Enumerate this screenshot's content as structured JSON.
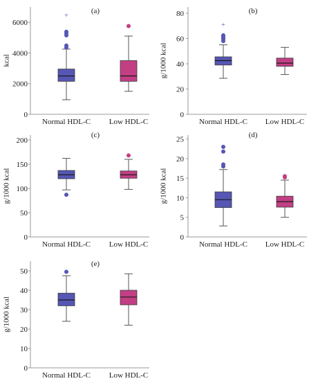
{
  "colors": {
    "normal": "#5656b4",
    "low": "#c23f84",
    "axis": "#9a9a9a",
    "whisker": "#555555",
    "median": "#1b1b1b"
  },
  "chart_data": [
    {
      "panel": "(a)",
      "type": "boxplot",
      "ylabel": "kcal",
      "ylim": [
        0,
        7000
      ],
      "yticks": [
        0,
        2000,
        4000,
        6000
      ],
      "categories": [
        "Normal HDL-C",
        "Low HDL-C"
      ],
      "series": [
        {
          "q1": 2150,
          "median": 2500,
          "q3": 2950,
          "whisker_low": 950,
          "whisker_high": 4250,
          "outliers": [
            4350,
            4480,
            5150,
            5280,
            5380
          ],
          "extremes": [
            6450
          ]
        },
        {
          "q1": 2150,
          "median": 2500,
          "q3": 3500,
          "whisker_low": 1500,
          "whisker_high": 5100,
          "outliers": [
            5750
          ],
          "extremes": []
        }
      ]
    },
    {
      "panel": "(b)",
      "type": "boxplot",
      "ylabel": "g/1000 kcal",
      "ylim": [
        0,
        85
      ],
      "yticks": [
        0,
        20,
        40,
        60,
        80
      ],
      "categories": [
        "Normal HDL-C",
        "Low HDL-C"
      ],
      "series": [
        {
          "q1": 39,
          "median": 42.5,
          "q3": 45.5,
          "whisker_low": 28.5,
          "whisker_high": 55,
          "outliers": [
            58,
            59.5,
            60.5,
            61.5,
            62.5
          ],
          "extremes": [
            71
          ]
        },
        {
          "q1": 38,
          "median": 40.5,
          "q3": 44.5,
          "whisker_low": 31.5,
          "whisker_high": 53,
          "outliers": [],
          "extremes": []
        }
      ]
    },
    {
      "panel": "(c)",
      "type": "boxplot",
      "ylabel": "g/1000 kcal",
      "ylim": [
        0,
        210
      ],
      "yticks": [
        0,
        50,
        100,
        150,
        200
      ],
      "categories": [
        "Normal HDL-C",
        "Low HDL-C"
      ],
      "series": [
        {
          "q1": 120,
          "median": 128,
          "q3": 137,
          "whisker_low": 97,
          "whisker_high": 162,
          "outliers": [
            87
          ],
          "extremes": []
        },
        {
          "q1": 121,
          "median": 128,
          "q3": 136,
          "whisker_low": 98,
          "whisker_high": 160,
          "outliers": [
            168
          ],
          "extremes": []
        }
      ]
    },
    {
      "panel": "(d)",
      "type": "boxplot",
      "ylabel": "g/1000 kcal",
      "ylim": [
        0,
        26
      ],
      "yticks": [
        0,
        5,
        10,
        15,
        20,
        25
      ],
      "categories": [
        "Normal HDL-C",
        "Low HDL-C"
      ],
      "series": [
        {
          "q1": 7.5,
          "median": 9.5,
          "q3": 11.5,
          "whisker_low": 2.8,
          "whisker_high": 17.2,
          "outliers": [
            18,
            18.5,
            21.8,
            23
          ],
          "extremes": []
        },
        {
          "q1": 7.6,
          "median": 9.0,
          "q3": 10.4,
          "whisker_low": 5.0,
          "whisker_high": 14.5,
          "outliers": [
            15.2,
            15.5
          ],
          "extremes": []
        }
      ]
    },
    {
      "panel": "(e)",
      "type": "boxplot",
      "ylabel": "g/1000 kcal",
      "ylim": [
        0,
        55
      ],
      "yticks": [
        0,
        10,
        20,
        30,
        40,
        50
      ],
      "categories": [
        "Normal HDL-C",
        "Low HDL-C"
      ],
      "series": [
        {
          "q1": 32,
          "median": 35,
          "q3": 38.5,
          "whisker_low": 24,
          "whisker_high": 47.5,
          "outliers": [
            49.5
          ],
          "extremes": []
        },
        {
          "q1": 32.5,
          "median": 36.5,
          "q3": 40,
          "whisker_low": 22,
          "whisker_high": 48.5,
          "outliers": [],
          "extremes": []
        }
      ]
    }
  ]
}
